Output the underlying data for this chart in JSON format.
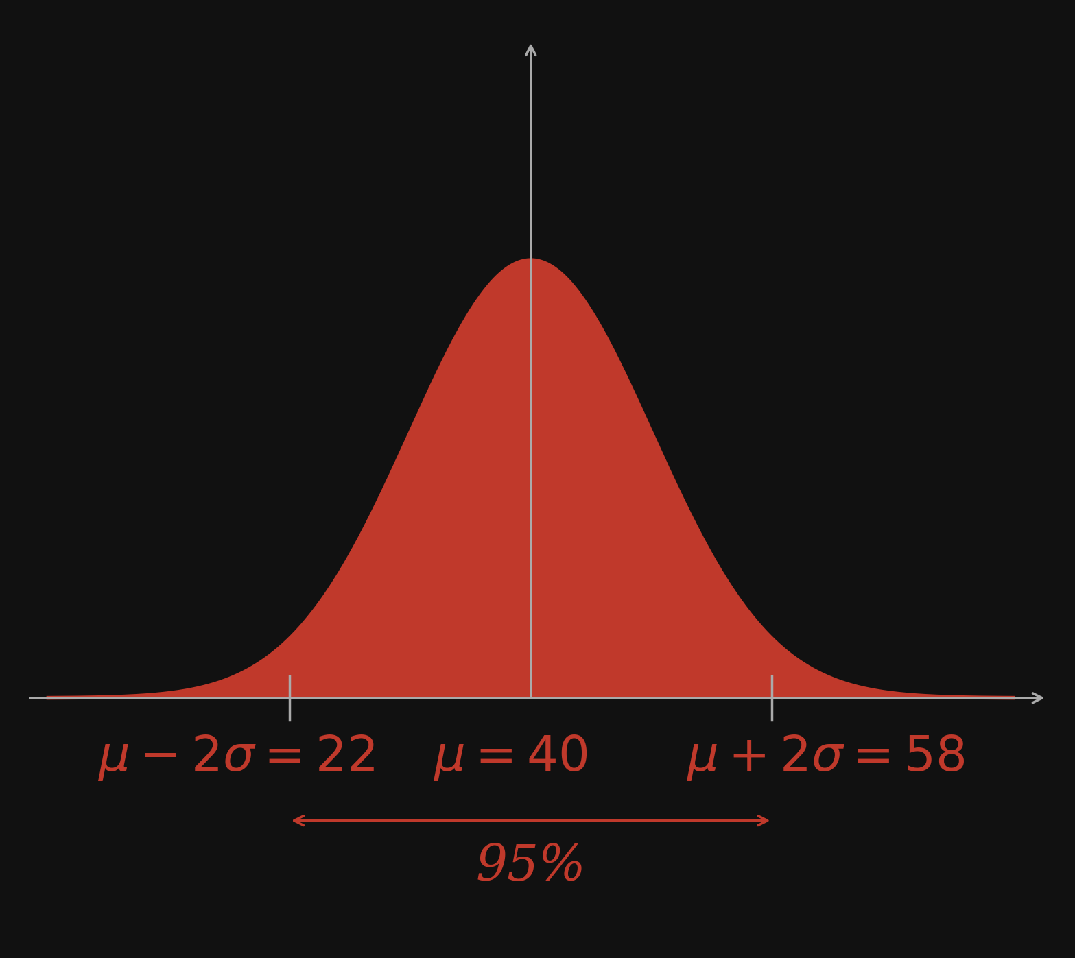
{
  "background_color": "#111111",
  "mean": 40,
  "std": 9,
  "x_min": 4,
  "x_max": 76,
  "fill_color": "#c0392b",
  "fill_alpha": 1.0,
  "curve_color": "#c0392b",
  "curve_lw": 4,
  "axis_color": "#aaaaaa",
  "text_color": "#c0392b",
  "lower_2sigma": 22,
  "upper_2sigma": 58,
  "label_fontsize": 52
}
